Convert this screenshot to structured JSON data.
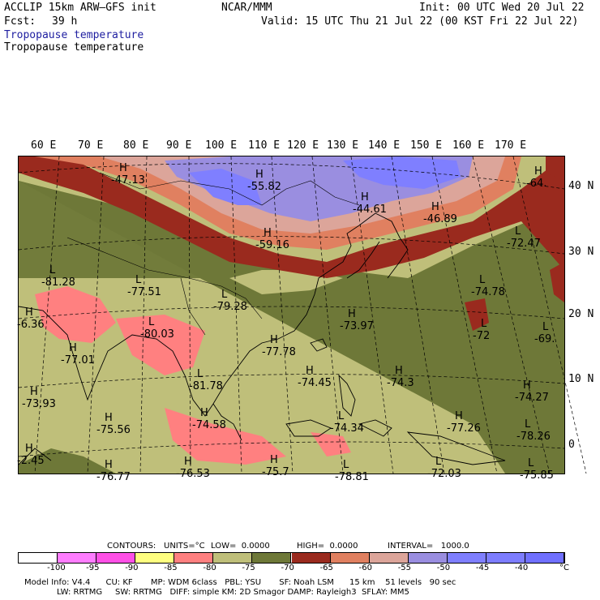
{
  "header": {
    "model": "ACCLIP 15km ARW–GFS init",
    "org": "NCAR/MMM",
    "init": "Init: 00 UTC Wed 20 Jul 22",
    "fcst_label": "Fcst:",
    "fcst_value": "39 h",
    "valid": "Valid: 15 UTC Thu 21 Jul 22 (00 KST Fri 22 Jul 22)",
    "field_line1": "Tropopause temperature",
    "field_line2": "Tropopause temperature"
  },
  "axes": {
    "longitudes": [
      "60 E",
      "70 E",
      "80 E",
      "90 E",
      "100 E",
      "110 E",
      "120 E",
      "130 E",
      "140 E",
      "150 E",
      "160 E",
      "170 E"
    ],
    "latitudes": [
      "40 N",
      "30 N",
      "20 N",
      "10 N",
      "0"
    ]
  },
  "map_labels": [
    {
      "type": "H",
      "value": "-47.13"
    },
    {
      "type": "H",
      "value": "-55.82"
    },
    {
      "type": "H",
      "value": "-44.61"
    },
    {
      "type": "H",
      "value": "-46.89"
    },
    {
      "type": "H",
      "value": "-64."
    },
    {
      "type": "H",
      "value": "-59.16"
    },
    {
      "type": "L",
      "value": "-72.47"
    },
    {
      "type": "L",
      "value": "-81.28"
    },
    {
      "type": "L",
      "value": "-77.51"
    },
    {
      "type": "L",
      "value": "-79.28"
    },
    {
      "type": "L",
      "value": "-74.78"
    },
    {
      "type": "H",
      "value": "-73.97"
    },
    {
      "type": "H",
      "value": "-6.36"
    },
    {
      "type": "L",
      "value": "-80.03"
    },
    {
      "type": "L",
      "value": "-72"
    },
    {
      "type": "L",
      "value": "-69."
    },
    {
      "type": "H",
      "value": "-77.01"
    },
    {
      "type": "H",
      "value": "-77.78"
    },
    {
      "type": "H",
      "value": "-74.45"
    },
    {
      "type": "H",
      "value": "-74.3"
    },
    {
      "type": "L",
      "value": "-81.78"
    },
    {
      "type": "H",
      "value": "-74.27"
    },
    {
      "type": "H",
      "value": "-73.93"
    },
    {
      "type": "H",
      "value": "-75.56"
    },
    {
      "type": "H",
      "value": "-74.58"
    },
    {
      "type": "L",
      "value": "-74.34"
    },
    {
      "type": "H",
      "value": "-77.26"
    },
    {
      "type": "L",
      "value": "-78.26"
    },
    {
      "type": "H",
      "value": "-2.45"
    },
    {
      "type": "H",
      "value": "-76.77"
    },
    {
      "type": "H",
      "value": "-76.53"
    },
    {
      "type": "H",
      "value": "-75.7"
    },
    {
      "type": "L",
      "value": "-78.81"
    },
    {
      "type": "L",
      "value": "-72.03"
    },
    {
      "type": "L",
      "value": "-75.85"
    }
  ],
  "contour_info": {
    "contours": "CONTOURS:",
    "units": "UNITS=°C",
    "low": "LOW=  0.0000",
    "high": "HIGH=  0.0000",
    "interval": "INTERVAL=   1000.0"
  },
  "colorbar": {
    "colors": [
      "#ffffff",
      "#ff7dff",
      "#ff50e6",
      "#ffff80",
      "#ff8080",
      "#bfbf7a",
      "#6e7838",
      "#9a2a1e",
      "#e08060",
      "#dca59a",
      "#9a8ee0",
      "#7f7fff",
      "#7d7dff",
      "#7070ff"
    ],
    "labels": [
      "-100",
      "-95",
      "-90",
      "-85",
      "-80",
      "-75",
      "-70",
      "-65",
      "-60",
      "-55",
      "-50",
      "-45",
      "-40"
    ],
    "unit": "°C"
  },
  "model_info": {
    "line1": "Model Info: V4.4      CU: KF       MP: WDM 6class   PBL: YSU       SF: Noah LSM      15 km    51 levels   90 sec",
    "line2": "LW: RRTMG     SW: RRTMG   DIFF: simple KM: 2D Smagor DAMP: Rayleigh3  SFLAY: MM5"
  }
}
